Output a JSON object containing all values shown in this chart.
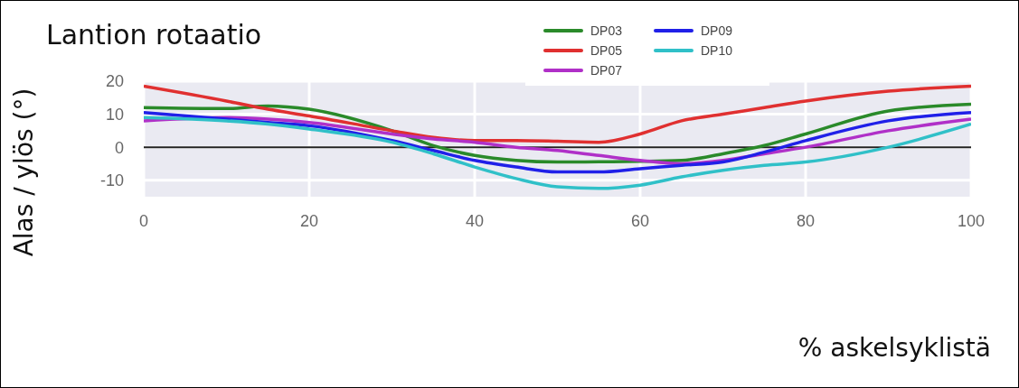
{
  "chart_data": {
    "type": "line",
    "title": "Lantion rotaatio",
    "xlabel": "% askelsyklistä",
    "ylabel": "Alas / ylös (°)",
    "x": [
      0,
      10,
      15,
      20,
      30,
      35,
      40,
      45,
      50,
      55,
      60,
      65,
      70,
      75,
      80,
      90,
      100
    ],
    "series": [
      {
        "name": "DP03",
        "color": "#2a8a2a",
        "values": [
          12,
          11.7,
          12.5,
          11.5,
          5,
          0.5,
          -2.5,
          -4,
          -4.5,
          -4.4,
          -4.3,
          -4,
          -2,
          0.5,
          4,
          11,
          13
        ]
      },
      {
        "name": "DP05",
        "color": "#e03030",
        "values": [
          18.5,
          14,
          11.5,
          9.5,
          5,
          3,
          2,
          2,
          1.8,
          1.5,
          4,
          8,
          10,
          12,
          14,
          17,
          18.5
        ]
      },
      {
        "name": "DP07",
        "color": "#b030c8",
        "values": [
          8,
          9,
          8.5,
          7.5,
          4,
          2.5,
          1.5,
          0,
          -1,
          -2.5,
          -4,
          -5,
          -4,
          -2,
          0,
          5,
          8.5
        ]
      },
      {
        "name": "DP09",
        "color": "#2020e8",
        "values": [
          10.5,
          8.5,
          7.5,
          6.5,
          2,
          -1,
          -4,
          -6,
          -7.5,
          -7.5,
          -6.5,
          -5.5,
          -4.5,
          -1.5,
          2,
          8,
          10.5
        ]
      },
      {
        "name": "DP10",
        "color": "#30c0c8",
        "values": [
          9,
          8,
          7,
          5.5,
          1.5,
          -2,
          -6,
          -9.5,
          -12,
          -12.5,
          -11.5,
          -9,
          -7,
          -5.5,
          -4.5,
          0,
          7
        ]
      }
    ],
    "xlim": [
      0,
      100
    ],
    "xticks": [
      0,
      20,
      40,
      60,
      80,
      100
    ],
    "ylim": [
      -15,
      20
    ],
    "yticks": [
      -10,
      0,
      10,
      20
    ],
    "ref_lines": [
      {
        "axis": "y",
        "value": 0,
        "color": "#222222"
      }
    ],
    "grid": true,
    "legend": "top",
    "marker": "none",
    "line_style": "solid"
  }
}
